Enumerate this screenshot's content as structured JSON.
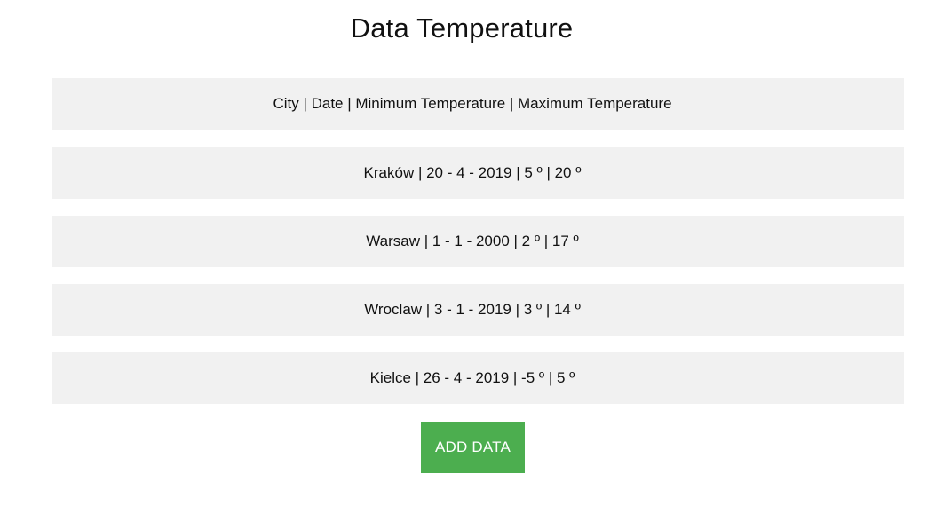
{
  "header": {
    "title": "Data Temperature"
  },
  "table": {
    "header_row": "City | Date | Minimum Temperature | Maximum Temperature",
    "rows": [
      "Kraków | 20 - 4 - 2019 | 5 º | 20 º",
      "Warsaw | 1 - 1 - 2000 | 2 º | 17 º",
      "Wroclaw | 3 - 1 - 2019 | 3 º | 14 º",
      "Kielce | 26 - 4 - 2019 | -5 º | 5 º"
    ]
  },
  "actions": {
    "add_label": "ADD DATA"
  },
  "colors": {
    "row_background": "#f1f1f1",
    "button_background": "#4cae4f",
    "button_text": "#ffffff"
  }
}
